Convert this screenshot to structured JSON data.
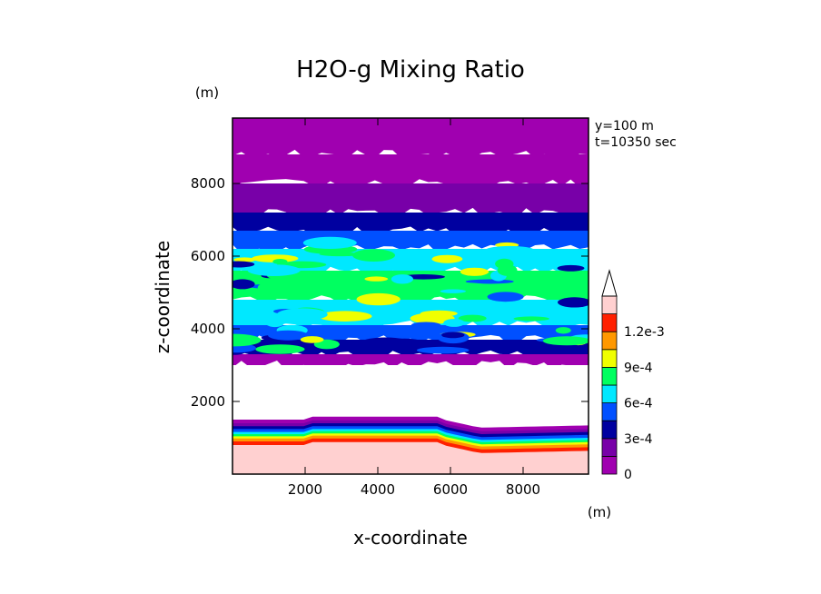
{
  "chart_data": {
    "type": "heatmap",
    "title": "H2O-g Mixing Ratio",
    "xlabel": "x-coordinate",
    "ylabel": "z-coordinate",
    "x_unit": "(m)",
    "y_unit": "(m)",
    "annotations": [
      "y=100 m",
      "t=10350 sec"
    ],
    "xlim": [
      0,
      9800
    ],
    "ylim": [
      0,
      9800
    ],
    "x_ticks": [
      2000,
      4000,
      6000,
      8000
    ],
    "y_ticks": [
      2000,
      4000,
      6000,
      8000
    ],
    "colorbar": {
      "levels": [
        0,
        0.00015,
        0.0003,
        0.00045,
        0.0006,
        0.00075,
        0.0009,
        0.00105,
        0.0012
      ],
      "labels": [
        "0",
        "3e-4",
        "6e-4",
        "9e-4",
        "1.2e-3"
      ],
      "label_values": [
        0,
        0.0003,
        0.0006,
        0.0009,
        0.0012
      ],
      "colors": [
        "#a000b0",
        "#7800a8",
        "#0000a0",
        "#0050ff",
        "#00e8ff",
        "#00ff60",
        "#f0ff00",
        "#ff9800",
        "#ff2000",
        "#ffd0d0"
      ],
      "extend": "max"
    },
    "layers": [
      {
        "z_top": 9800,
        "z_bottom": 8800,
        "value": 5e-05
      },
      {
        "z_top": 8800,
        "z_bottom": 8000,
        "value": 0.0001
      },
      {
        "z_top": 8000,
        "z_bottom": 7200,
        "value": 0.0002
      },
      {
        "z_top": 7200,
        "z_bottom": 6700,
        "value": 0.00035
      },
      {
        "z_top": 6700,
        "z_bottom": 6200,
        "value": 0.0005
      },
      {
        "z_top": 6200,
        "z_bottom": 5600,
        "value": 0.00065
      },
      {
        "z_top": 5600,
        "z_bottom": 4800,
        "value": 0.0008
      },
      {
        "z_top": 4800,
        "z_bottom": 4100,
        "value": 0.00065
      },
      {
        "z_top": 4100,
        "z_bottom": 3700,
        "value": 0.0005
      },
      {
        "z_top": 3700,
        "z_bottom": 3300,
        "value": 0.00035
      },
      {
        "z_top": 3300,
        "z_bottom": 3000,
        "value": 0.0001
      },
      {
        "z_top": 3000,
        "z_bottom": 1500,
        "value": null
      },
      {
        "z_top": 1500,
        "z_bottom": 0,
        "value": "gradient"
      }
    ],
    "grid": false
  }
}
